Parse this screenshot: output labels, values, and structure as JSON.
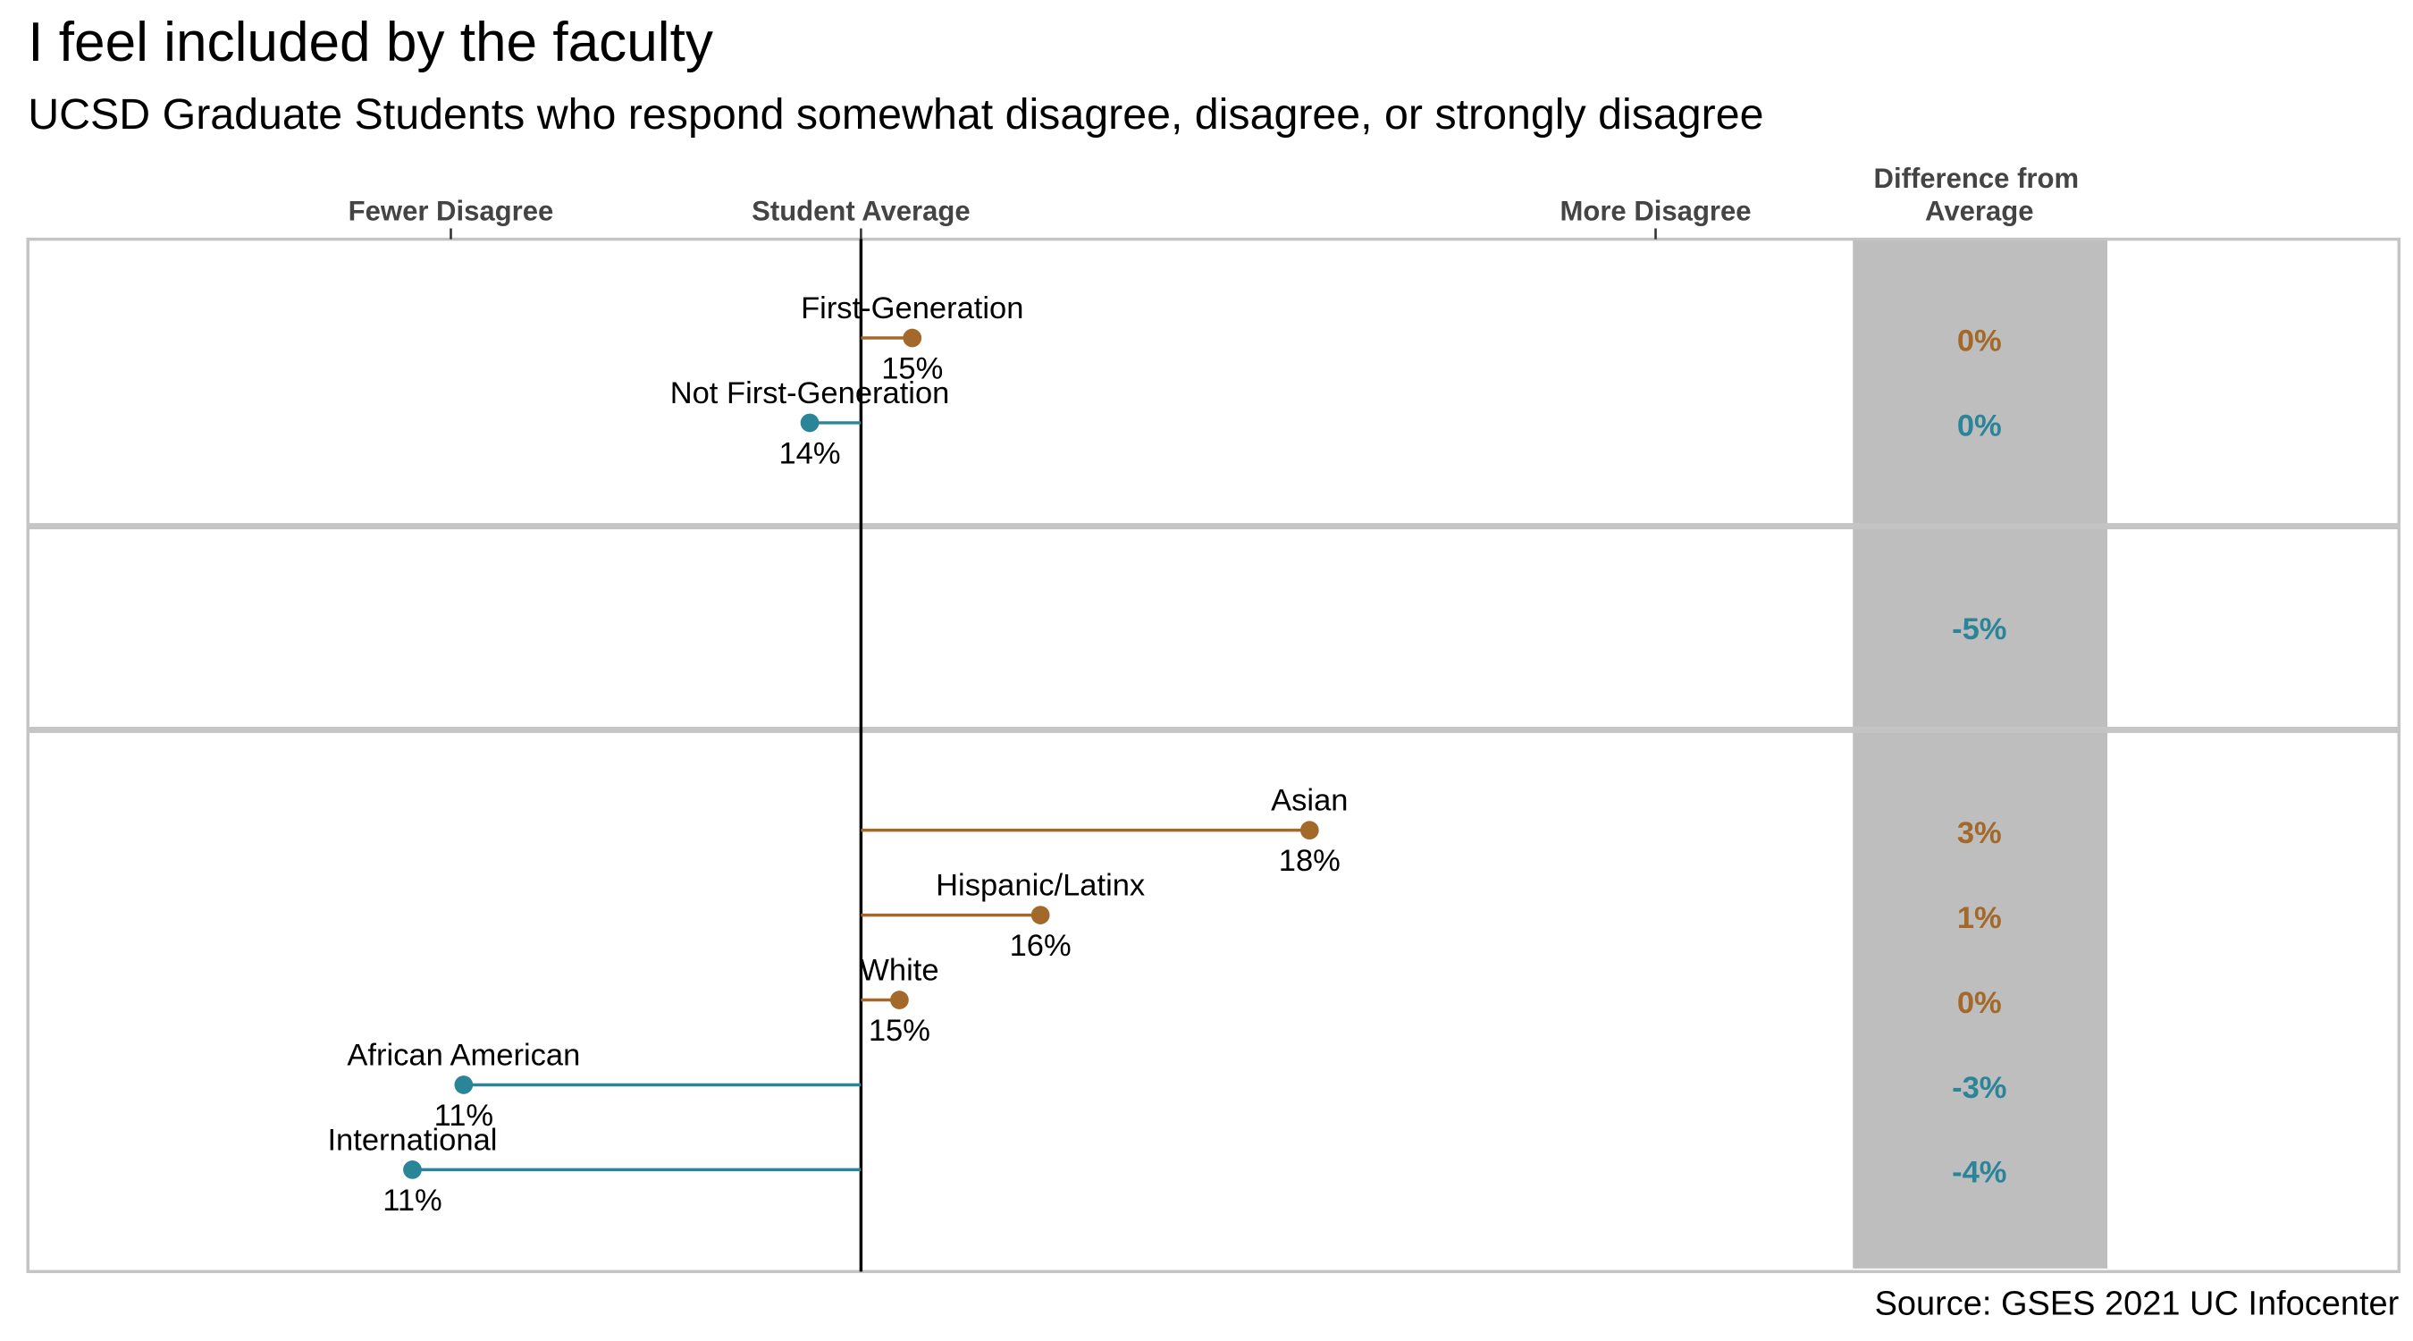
{
  "chart_data": {
    "type": "lollipop",
    "title": "I feel included by the faculty",
    "subtitle": "UCSD Graduate Students who respond somewhat disagree, disagree, or strongly disagree",
    "source": "Source: GSES 2021 UC Infocenter",
    "diff_header": [
      "Difference from",
      "Average"
    ],
    "xlim": [
      7.9,
      26.4
    ],
    "xticks": [
      {
        "value": 11.2,
        "label": "Fewer Disagree"
      },
      {
        "value": 14.4,
        "label": "Student Average"
      },
      {
        "value": 20.6,
        "label": "More Disagree"
      }
    ],
    "panels": [
      {
        "rows": [
          {
            "label": "First-Generation",
            "value": 14.8,
            "value_label": "15%",
            "diff_label": "0%",
            "color": "#a3692b"
          },
          {
            "label": "Not First-Generation",
            "value": 14.0,
            "value_label": "14%",
            "diff_label": "0%",
            "color": "#2a8599"
          }
        ]
      },
      {
        "rows": [
          {
            "label": null,
            "value": null,
            "value_label": null,
            "diff_label": "-5%",
            "color": "#2a8599"
          }
        ]
      },
      {
        "rows": [
          {
            "label": "Asian",
            "value": 17.9,
            "value_label": "18%",
            "diff_label": "3%",
            "color": "#a3692b"
          },
          {
            "label": "Hispanic/Latinx",
            "value": 15.8,
            "value_label": "16%",
            "diff_label": "1%",
            "color": "#a3692b"
          },
          {
            "label": "White",
            "value": 14.7,
            "value_label": "15%",
            "diff_label": "0%",
            "color": "#a3692b"
          },
          {
            "label": "African American",
            "value": 11.3,
            "value_label": "11%",
            "diff_label": "-3%",
            "color": "#2a8599"
          },
          {
            "label": "International",
            "value": 10.9,
            "value_label": "11%",
            "diff_label": "-4%",
            "color": "#2a8599"
          }
        ]
      }
    ]
  }
}
